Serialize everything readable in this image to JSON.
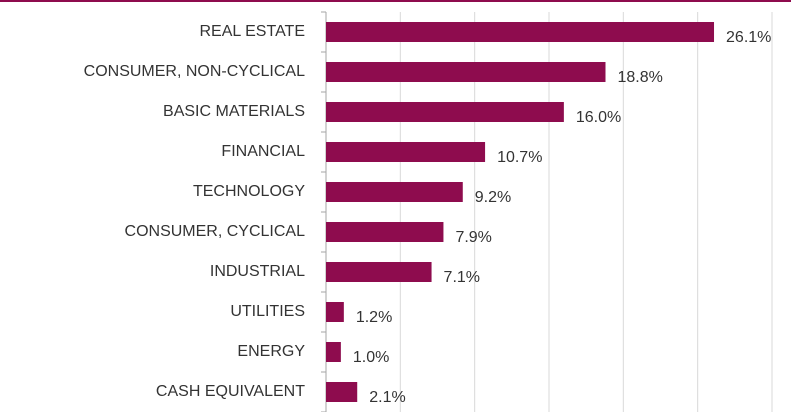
{
  "chart_data": {
    "type": "bar",
    "orientation": "horizontal",
    "categories": [
      "REAL ESTATE",
      "CONSUMER, NON-CYCLICAL",
      "BASIC MATERIALS",
      "FINANCIAL",
      "TECHNOLOGY",
      "CONSUMER, CYCLICAL",
      "INDUSTRIAL",
      "UTILITIES",
      "ENERGY",
      "CASH EQUIVALENT"
    ],
    "values": [
      26.1,
      18.8,
      16.0,
      10.7,
      9.2,
      7.9,
      7.1,
      1.2,
      1.0,
      2.1
    ],
    "value_labels": [
      "26.1%",
      "18.8%",
      "16.0%",
      "10.7%",
      "9.2%",
      "7.9%",
      "7.1%",
      "1.2%",
      "1.0%",
      "2.1%"
    ],
    "color": "#8e0c4e",
    "xlim": [
      0,
      30
    ],
    "xticks": [
      0,
      5,
      10,
      15,
      20,
      25,
      30
    ],
    "grid": true
  }
}
